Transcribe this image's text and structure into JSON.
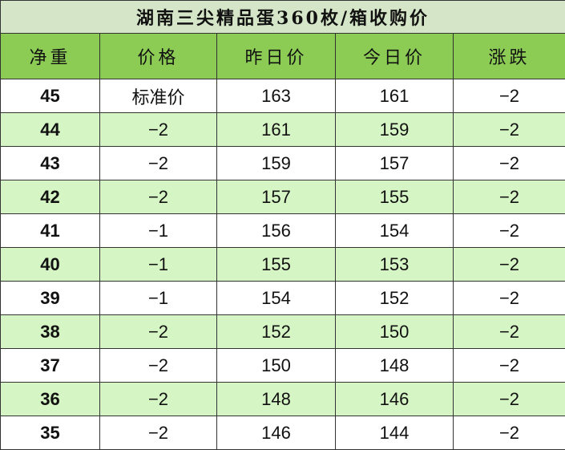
{
  "title": "湖南三尖精品蛋360枚/箱收购价",
  "headers": [
    "净重",
    "价格",
    "昨日价",
    "今日价",
    "涨跌"
  ],
  "rows": [
    [
      "45",
      "标准价",
      "163",
      "161",
      "−2"
    ],
    [
      "44",
      "−2",
      "161",
      "159",
      "−2"
    ],
    [
      "43",
      "−2",
      "159",
      "157",
      "−2"
    ],
    [
      "42",
      "−2",
      "157",
      "155",
      "−2"
    ],
    [
      "41",
      "−1",
      "156",
      "154",
      "−2"
    ],
    [
      "40",
      "−1",
      "155",
      "153",
      "−2"
    ],
    [
      "39",
      "−1",
      "154",
      "152",
      "−2"
    ],
    [
      "38",
      "−2",
      "152",
      "150",
      "−2"
    ],
    [
      "37",
      "−2",
      "150",
      "148",
      "−2"
    ],
    [
      "36",
      "−2",
      "148",
      "146",
      "−2"
    ],
    [
      "35",
      "−2",
      "146",
      "144",
      "−2"
    ]
  ]
}
